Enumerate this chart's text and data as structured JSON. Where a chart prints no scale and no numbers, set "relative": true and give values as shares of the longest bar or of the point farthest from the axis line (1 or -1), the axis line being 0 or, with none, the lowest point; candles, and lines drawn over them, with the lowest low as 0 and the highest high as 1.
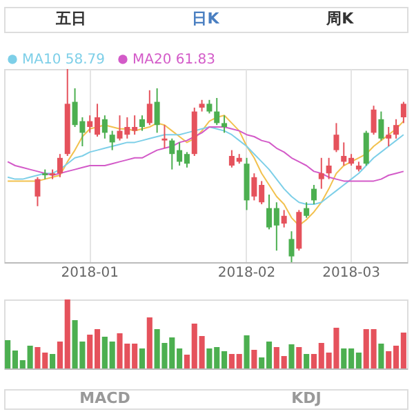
{
  "chart_data": [
    {
      "type": "candlestick",
      "relative": true,
      "legend": "top left",
      "grid": "x",
      "annotations": [
        "五日",
        "日K",
        "周K",
        "MACD",
        "KDJ"
      ],
      "categories": [
        null,
        null,
        null,
        null,
        null,
        null,
        null,
        null,
        null,
        null,
        null,
        "2018-01",
        null,
        null,
        null,
        null,
        null,
        null,
        null,
        null,
        null,
        null,
        null,
        null,
        null,
        null,
        null,
        null,
        null,
        null,
        null,
        null,
        "2018-02",
        null,
        null,
        null,
        null,
        null,
        null,
        null,
        null,
        null,
        null,
        null,
        null,
        null,
        "2018-03",
        null,
        null,
        null,
        null,
        null,
        null,
        null
      ],
      "ohlc": [
        null,
        null,
        null,
        null,
        [
          0.34,
          0.44,
          0.29,
          0.43
        ],
        [
          0.46,
          0.48,
          0.43,
          0.45
        ],
        [
          0.45,
          0.48,
          0.43,
          0.46
        ],
        [
          0.46,
          0.56,
          0.44,
          0.54
        ],
        [
          0.56,
          1.0,
          0.55,
          0.82
        ],
        [
          0.83,
          0.9,
          0.7,
          0.71
        ],
        [
          0.73,
          0.75,
          0.6,
          0.67
        ],
        [
          0.7,
          0.76,
          0.67,
          0.73
        ],
        [
          0.66,
          0.82,
          0.65,
          0.75
        ],
        [
          0.74,
          0.76,
          0.64,
          0.67
        ],
        [
          0.66,
          0.68,
          0.58,
          0.62
        ],
        [
          0.64,
          0.76,
          0.63,
          0.68
        ],
        [
          0.66,
          0.75,
          0.64,
          0.7
        ],
        [
          0.68,
          0.76,
          0.66,
          0.7
        ],
        [
          0.74,
          0.76,
          0.68,
          0.7
        ],
        [
          0.72,
          0.89,
          0.71,
          0.82
        ],
        [
          0.83,
          0.9,
          0.67,
          0.71
        ],
        [
          0.63,
          0.71,
          0.59,
          0.64
        ],
        [
          0.63,
          0.64,
          0.48,
          0.56
        ],
        [
          0.58,
          0.62,
          0.5,
          0.52
        ],
        [
          0.56,
          0.57,
          0.49,
          0.51
        ],
        [
          0.56,
          0.8,
          0.55,
          0.78
        ],
        [
          0.8,
          0.84,
          0.78,
          0.82
        ],
        [
          0.82,
          0.84,
          0.77,
          0.78
        ],
        [
          0.78,
          0.85,
          0.71,
          0.72
        ],
        [
          0.72,
          0.76,
          0.67,
          0.7
        ],
        [
          0.5,
          0.58,
          0.49,
          0.55
        ],
        [
          0.52,
          0.56,
          0.51,
          0.54
        ],
        [
          0.51,
          0.54,
          0.27,
          0.32
        ],
        [
          0.34,
          0.46,
          0.32,
          0.44
        ],
        [
          0.31,
          0.42,
          0.3,
          0.4
        ],
        [
          0.28,
          0.35,
          0.17,
          0.18
        ],
        [
          0.28,
          0.31,
          0.06,
          0.19
        ],
        [
          0.2,
          0.27,
          0.18,
          0.24
        ],
        [
          0.12,
          0.16,
          0,
          0.03
        ],
        [
          0.07,
          0.27,
          0.06,
          0.26
        ],
        [
          0.28,
          0.31,
          0.23,
          0.24
        ],
        [
          0.38,
          0.4,
          0.3,
          0.32
        ],
        [
          0.43,
          0.54,
          0.38,
          0.46
        ],
        [
          0.46,
          0.54,
          0.43,
          0.5
        ],
        [
          0.58,
          0.72,
          0.57,
          0.66
        ],
        [
          0.52,
          0.62,
          0.5,
          0.55
        ],
        [
          0.51,
          0.56,
          0.5,
          0.54
        ],
        [
          0.48,
          0.52,
          0.47,
          0.5
        ],
        [
          0.67,
          0.68,
          0.5,
          0.51
        ],
        [
          0.67,
          0.81,
          0.66,
          0.79
        ],
        [
          0.74,
          0.78,
          0.63,
          0.64
        ],
        [
          0.64,
          0.7,
          0.6,
          0.66
        ],
        [
          0.66,
          0.74,
          0.64,
          0.71
        ],
        [
          0.75,
          0.83,
          0.72,
          0.82
        ]
      ],
      "colors": [
        null,
        null,
        null,
        null,
        "#e5525c",
        "#4caf50",
        "#e5525c",
        "#e5525c",
        "#e5525c",
        "#4caf50",
        "#4caf50",
        "#e5525c",
        "#e5525c",
        "#4caf50",
        "#4caf50",
        "#e5525c",
        "#e5525c",
        "#e5525c",
        "#4caf50",
        "#e5525c",
        "#4caf50",
        "#e5525c",
        "#4caf50",
        "#4caf50",
        "#4caf50",
        "#e5525c",
        "#e5525c",
        "#4caf50",
        "#4caf50",
        "#4caf50",
        "#e5525c",
        "#e5525c",
        "#4caf50",
        "#e5525c",
        "#e5525c",
        "#4caf50",
        "#4caf50",
        "#e5525c",
        "#4caf50",
        "#e5525c",
        "#4caf50",
        "#4caf50",
        "#e5525c",
        "#e5525c",
        "#e5525c",
        "#e5525c",
        "#e5525c",
        "#e5525c",
        "#4caf50",
        "#e5525c",
        "#4caf50",
        "#e5525c",
        "#e5525c",
        "#e5525c"
      ],
      "series": [
        {
          "type": "line",
          "color": "#f2c14e",
          "values": [
            0.42,
            0.42,
            0.42,
            0.42,
            0.42,
            0.43,
            0.44,
            0.45,
            0.52,
            0.58,
            0.65,
            0.69,
            0.7,
            0.71,
            0.7,
            0.69,
            0.69,
            0.68,
            0.69,
            0.7,
            0.72,
            0.71,
            0.68,
            0.65,
            0.62,
            0.64,
            0.68,
            0.73,
            0.75,
            0.76,
            0.72,
            0.68,
            0.6,
            0.54,
            0.46,
            0.4,
            0.34,
            0.3,
            0.23,
            0.19,
            0.22,
            0.26,
            0.31,
            0.38,
            0.46,
            0.5,
            0.52,
            0.54,
            0.56,
            0.6,
            0.63,
            0.66,
            0.69,
            0.73
          ]
        },
        {
          "type": "line",
          "name": "MA10 58.79",
          "color": "#7dcfe8",
          "values": [
            0.44,
            0.43,
            0.43,
            0.44,
            0.45,
            0.46,
            0.46,
            0.48,
            0.51,
            0.54,
            0.55,
            0.57,
            0.58,
            0.59,
            0.6,
            0.61,
            0.62,
            0.62,
            0.63,
            0.64,
            0.65,
            0.66,
            0.66,
            0.66,
            0.67,
            0.68,
            0.69,
            0.7,
            0.69,
            0.68,
            0.66,
            0.63,
            0.6,
            0.56,
            0.52,
            0.48,
            0.43,
            0.38,
            0.34,
            0.31,
            0.3,
            0.3,
            0.31,
            0.34,
            0.37,
            0.4,
            0.43,
            0.46,
            0.5,
            0.54,
            0.57,
            0.6,
            0.63,
            0.66
          ]
        },
        {
          "type": "line",
          "name": "MA20 61.83",
          "color": "#d35ac8",
          "values": [
            0.52,
            0.5,
            0.49,
            0.48,
            0.47,
            0.46,
            0.45,
            0.46,
            0.47,
            0.48,
            0.49,
            0.5,
            0.5,
            0.5,
            0.51,
            0.52,
            0.53,
            0.54,
            0.54,
            0.56,
            0.58,
            0.59,
            0.6,
            0.62,
            0.63,
            0.65,
            0.67,
            0.7,
            0.7,
            0.7,
            0.69,
            0.68,
            0.66,
            0.65,
            0.63,
            0.62,
            0.59,
            0.57,
            0.54,
            0.52,
            0.5,
            0.47,
            0.46,
            0.44,
            0.43,
            0.42,
            0.42,
            0.42,
            0.42,
            0.42,
            0.43,
            0.45,
            0.46,
            0.47
          ]
        }
      ]
    },
    {
      "type": "bar",
      "relative": true,
      "grid": "x",
      "categories": [
        null,
        null,
        null,
        null,
        null,
        null,
        null,
        null,
        null,
        null,
        null,
        null,
        null,
        null,
        null,
        null,
        null,
        null,
        null,
        null,
        null,
        null,
        null,
        null,
        null,
        null,
        null,
        null,
        null,
        null,
        null,
        null,
        null,
        null,
        null,
        null,
        null,
        null,
        null,
        null,
        null,
        null,
        null,
        null,
        null,
        null,
        null,
        null,
        null,
        null,
        null,
        null,
        null,
        null
      ],
      "values": [
        0.41,
        0.26,
        0.12,
        0.33,
        0.31,
        0.23,
        0.21,
        0.39,
        1,
        0.7,
        0.39,
        0.49,
        0.57,
        0.46,
        0.39,
        0.51,
        0.36,
        0.36,
        0.29,
        0.74,
        0.57,
        0.37,
        0.45,
        0.29,
        0.2,
        0.65,
        0.47,
        0.29,
        0.31,
        0.25,
        0.21,
        0.21,
        0.48,
        0.27,
        0.16,
        0.39,
        0.31,
        0.18,
        0.35,
        0.31,
        0.21,
        0.21,
        0.37,
        0.23,
        0.59,
        0.29,
        0.29,
        0.23,
        0.57,
        0.57,
        0.36,
        0.25,
        0.33,
        0.52
      ],
      "colors": [
        "#4caf50",
        "#4caf50",
        "#4caf50",
        "#4caf50",
        "#e5525c",
        "#e5525c",
        "#4caf50",
        "#e5525c",
        "#e5525c",
        "#4caf50",
        "#4caf50",
        "#e5525c",
        "#e5525c",
        "#4caf50",
        "#4caf50",
        "#e5525c",
        "#e5525c",
        "#e5525c",
        "#4caf50",
        "#e5525c",
        "#4caf50",
        "#4caf50",
        "#4caf50",
        "#4caf50",
        "#e5525c",
        "#e5525c",
        "#e5525c",
        "#4caf50",
        "#4caf50",
        "#4caf50",
        "#e5525c",
        "#e5525c",
        "#4caf50",
        "#e5525c",
        "#4caf50",
        "#4caf50",
        "#e5525c",
        "#e5525c",
        "#4caf50",
        "#e5525c",
        "#4caf50",
        "#e5525c",
        "#e5525c",
        "#e5525c",
        "#e5525c",
        "#4caf50",
        "#4caf50",
        "#4caf50",
        "#e5525c",
        "#e5525c",
        "#4caf50",
        "#e5525c",
        "#e5525c",
        "#e5525c"
      ]
    }
  ]
}
